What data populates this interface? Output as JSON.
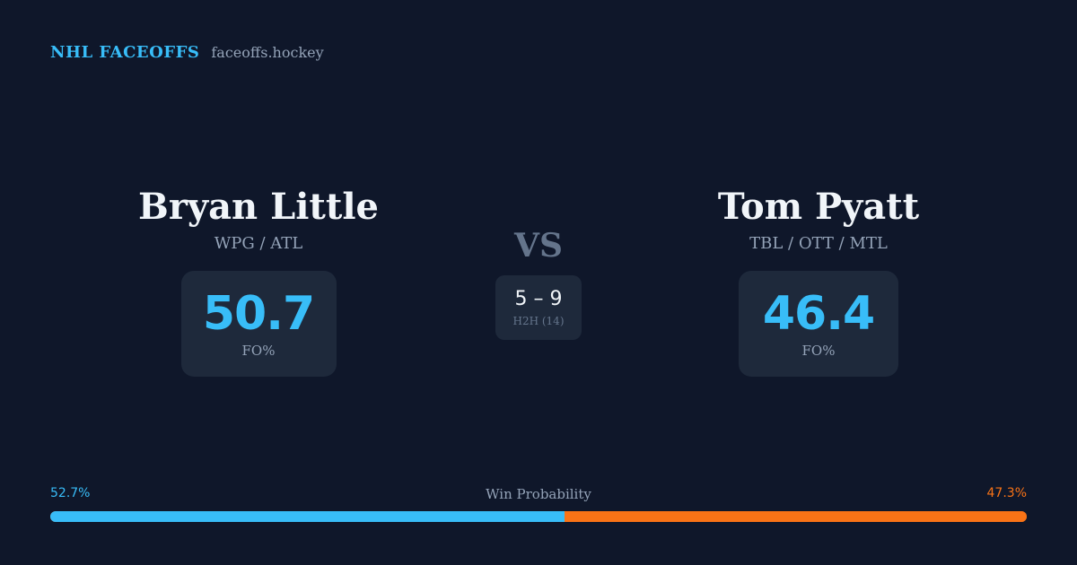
{
  "brand": {
    "title": "NHL FACEOFFS",
    "site": "faceoffs.hockey"
  },
  "players": [
    {
      "name": "Bryan Little",
      "teams": "WPG / ATL",
      "stat_value": "50.7",
      "stat_label": "FO%"
    },
    {
      "name": "Tom Pyatt",
      "teams": "TBL / OTT / MTL",
      "stat_value": "46.4",
      "stat_label": "FO%"
    }
  ],
  "vs_label": "VS",
  "h2h": {
    "score": "5 – 9",
    "label": "H2H (14)"
  },
  "win_probability": {
    "title": "Win Probability",
    "left_label": "52.7%",
    "right_label": "47.3%",
    "left_value": 52.7,
    "right_value": 47.3
  },
  "colors": {
    "background": "#0f172a",
    "card": "#1e293b",
    "accent_blue": "#38bdf8",
    "accent_orange": "#f97316",
    "muted": "#94a3b8"
  }
}
